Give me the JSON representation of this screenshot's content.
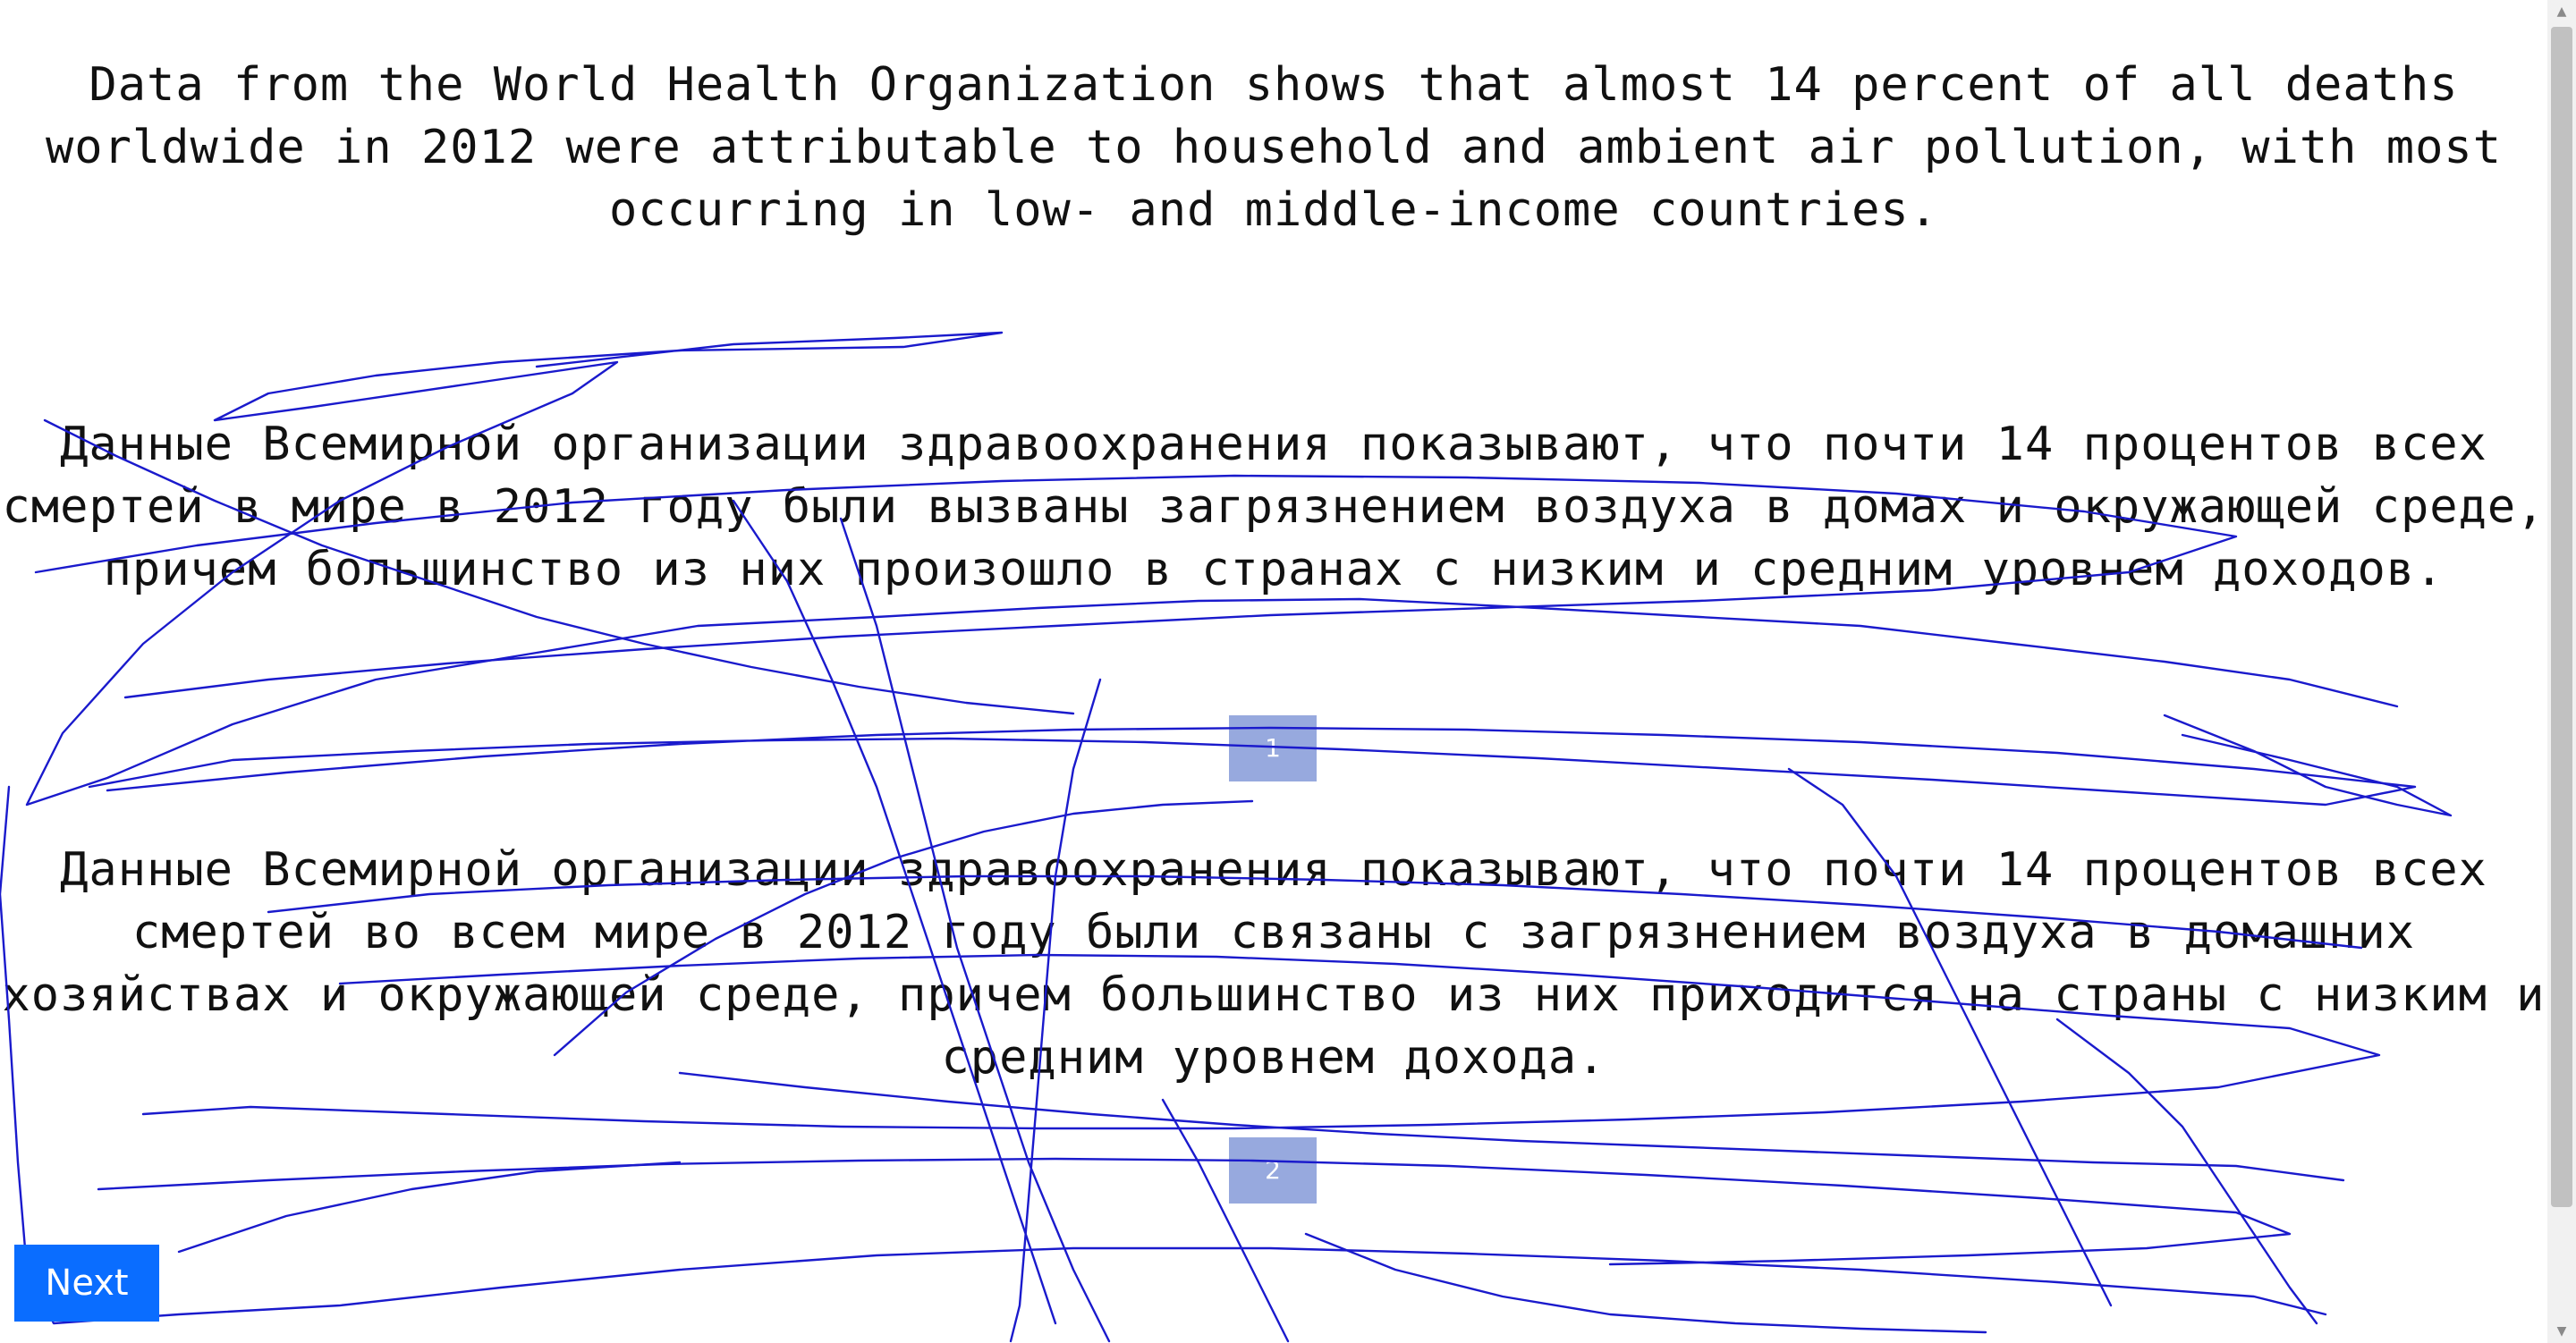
{
  "source_text": "Data from the World Health Organization shows that almost 14 percent of all deaths worldwide in 2012 were attributable to household and ambient air pollution, with most occurring in low- and middle-income countries.",
  "translations": [
    {
      "text": "Данные Всемирной организации здравоохранения показывают, что почти 14 процентов всех смертей в мире в 2012 году были вызваны загрязнением воздуха в домах и окружающей среде, причем большинство из них произошло в странах с низким и средним уровнем доходов.",
      "choice_label": "1"
    },
    {
      "text": "Данные Всемирной организации здравоохранения показывают, что почти 14 процентов всех смертей во всем мире в 2012 году были связаны с загрязнением воздуха в домашних хозяйствах и окружающей среде, причем большинство из них приходится на страны с низким и средним уровнем дохода.",
      "choice_label": "2"
    }
  ],
  "next_label": "Next",
  "colors": {
    "choice_button": "#97a9de",
    "next_button": "#0a6dff",
    "mouse_trail": "#1a1acc"
  },
  "scrollbar": {
    "up_icon": "triangle-up",
    "down_icon": "triangle-down"
  }
}
